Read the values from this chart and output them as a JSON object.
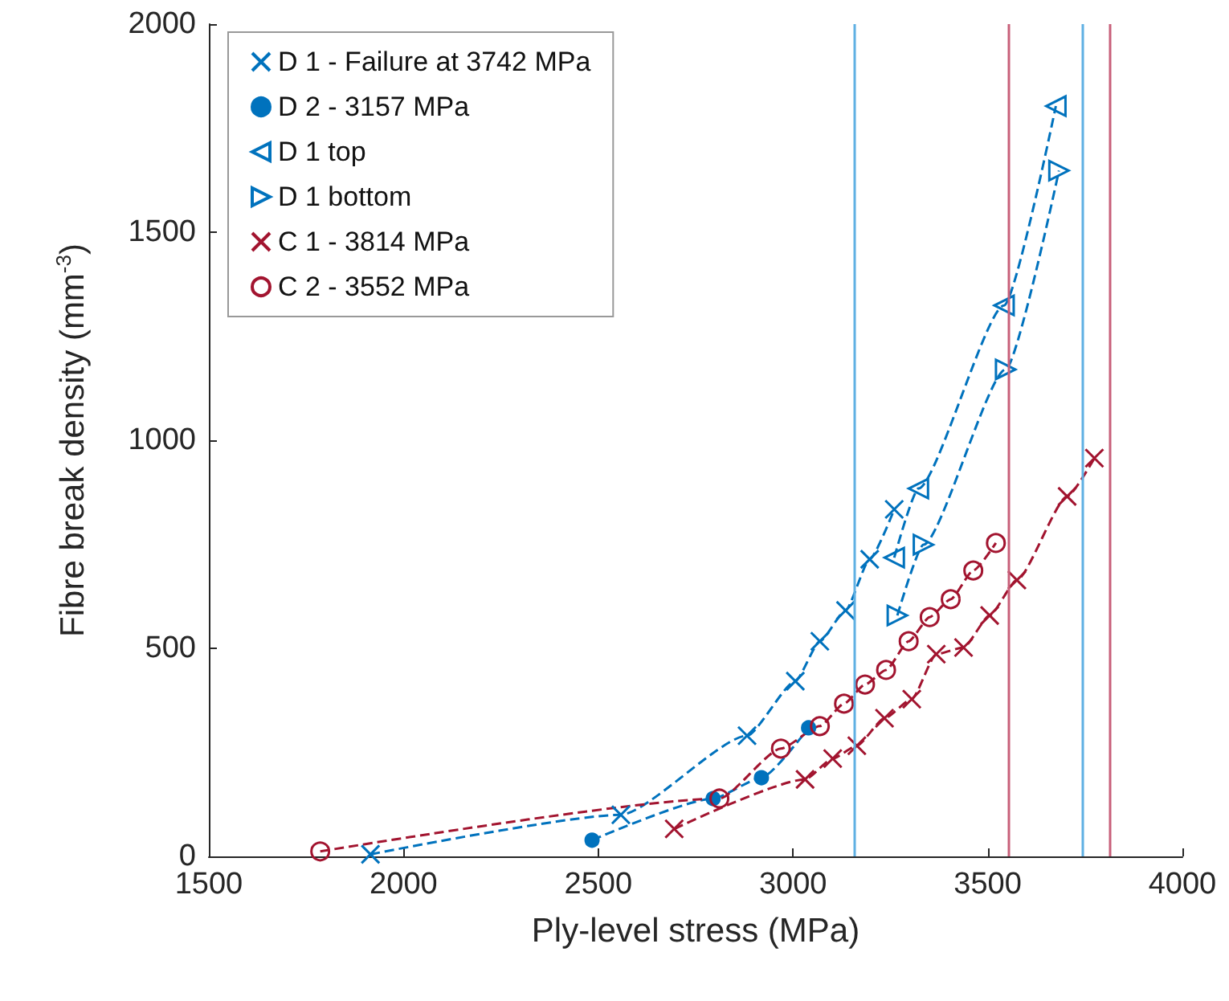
{
  "chart_data": {
    "type": "line",
    "xlabel": "Ply-level stress (MPa)",
    "ylabel": "Fibre break density (mm$^{-3}$)",
    "xlim": [
      1500,
      4000
    ],
    "xticks": [
      1500,
      2000,
      2500,
      3000,
      3500,
      4000
    ],
    "ylim": [
      0,
      2000
    ],
    "yticks": [
      0,
      500,
      1000,
      1500,
      2000
    ],
    "grid": false,
    "legend": "top left",
    "line_style": "dashed",
    "series": [
      {
        "name": "D 1 - Failure at 3742 MPa",
        "color": "#0072bd",
        "marker": "cross",
        "x": [
          1915,
          2558,
          2882,
          3006,
          3069,
          3135,
          3197,
          3260
        ],
        "values": [
          5,
          100,
          290,
          421,
          517,
          591,
          714,
          834
        ]
      },
      {
        "name": "D 2 - 3157 MPa",
        "color": "#0072bd",
        "marker": "point",
        "x": [
          2484,
          2795,
          2919,
          3040
        ],
        "values": [
          39,
          139,
          189,
          309
        ]
      },
      {
        "name": "D 1 top",
        "color": "#0072bd",
        "marker": "triangle-left",
        "x": [
          3260,
          3322,
          3542,
          3675
        ],
        "values": [
          718,
          884,
          1324,
          1803
        ]
      },
      {
        "name": "D 1 bottom",
        "color": "#0072bd",
        "marker": "triangle-right",
        "x": [
          3268,
          3335,
          3546,
          3683
        ],
        "values": [
          579,
          749,
          1170,
          1648
        ]
      },
      {
        "name": "C 1 - 3814 MPa",
        "color": "#a2142f",
        "marker": "cross",
        "x": [
          2695,
          3031,
          3102,
          3164,
          3235,
          3305,
          3368,
          3438,
          3505,
          3575,
          3704,
          3774
        ],
        "values": [
          66,
          185,
          235,
          266,
          332,
          378,
          486,
          502,
          579,
          664,
          865,
          957
        ]
      },
      {
        "name": "C 2 - 3552 MPa",
        "color": "#a2142f",
        "marker": "circle",
        "x": [
          1786,
          2811,
          2969,
          3069,
          3131,
          3185,
          3239,
          3297,
          3351,
          3405,
          3463,
          3521
        ],
        "values": [
          12,
          139,
          259,
          313,
          367,
          413,
          448,
          517,
          575,
          618,
          687,
          753
        ]
      }
    ],
    "ref_lines": [
      {
        "axis": "x",
        "value": 3157,
        "color": "#5fb0e3"
      },
      {
        "axis": "x",
        "value": 3552,
        "color": "#c8607a"
      },
      {
        "axis": "x",
        "value": 3742,
        "color": "#5fb0e3"
      },
      {
        "axis": "x",
        "value": 3814,
        "color": "#c8607a"
      }
    ]
  }
}
